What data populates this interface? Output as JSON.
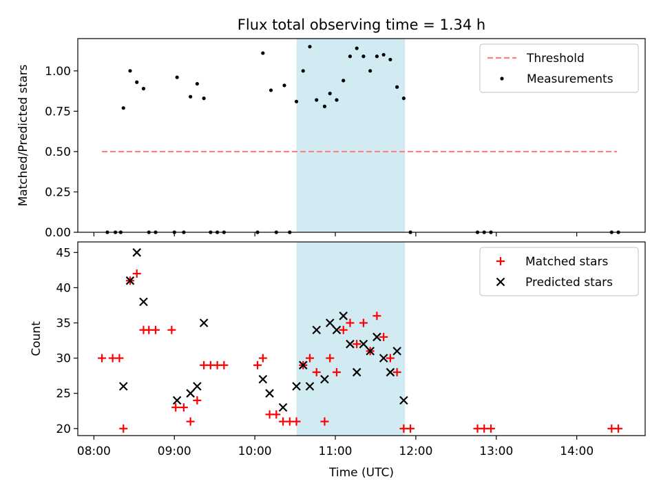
{
  "title": "Flux total observing time = 1.34 h",
  "colors": {
    "threshold": "#ff7f7f",
    "measurement": "#000000",
    "matched": "#ff0000",
    "predicted": "#000000",
    "shade": "#add8e6"
  },
  "chart_data": [
    {
      "type": "scatter",
      "ylabel": "Matched/Predicted stars",
      "xlabel": "",
      "x_range_hours": [
        7.8,
        14.85
      ],
      "ylim": [
        0,
        1.2
      ],
      "yticks": [
        0.0,
        0.25,
        0.5,
        0.75,
        1.0
      ],
      "ytick_labels": [
        "0.00",
        "0.25",
        "0.50",
        "0.75",
        "1.00"
      ],
      "grid": false,
      "legend_position": "top-right",
      "shaded_span": {
        "start": "10:31",
        "end": "11:52"
      },
      "threshold": {
        "name": "Threshold",
        "value": 0.5,
        "x_start": "08:06",
        "x_end": "14:30"
      },
      "series": [
        {
          "name": "Measurements",
          "points": [
            [
              "08:10",
              0.0
            ],
            [
              "08:16",
              0.0
            ],
            [
              "08:20",
              0.0
            ],
            [
              "08:22",
              0.77
            ],
            [
              "08:27",
              1.0
            ],
            [
              "08:32",
              0.93
            ],
            [
              "08:37",
              0.89
            ],
            [
              "08:41",
              0.0
            ],
            [
              "08:46",
              0.0
            ],
            [
              "09:00",
              0.0
            ],
            [
              "09:02",
              0.96
            ],
            [
              "09:07",
              0.0
            ],
            [
              "09:12",
              0.84
            ],
            [
              "09:17",
              0.92
            ],
            [
              "09:22",
              0.83
            ],
            [
              "09:27",
              0.0
            ],
            [
              "09:32",
              0.0
            ],
            [
              "09:37",
              0.0
            ],
            [
              "10:02",
              0.0
            ],
            [
              "10:06",
              1.11
            ],
            [
              "10:12",
              0.88
            ],
            [
              "10:16",
              0.0
            ],
            [
              "10:22",
              0.91
            ],
            [
              "10:26",
              0.0
            ],
            [
              "10:31",
              0.81
            ],
            [
              "10:36",
              1.0
            ],
            [
              "10:41",
              1.15
            ],
            [
              "10:46",
              0.82
            ],
            [
              "10:52",
              0.78
            ],
            [
              "10:56",
              0.86
            ],
            [
              "11:01",
              0.82
            ],
            [
              "11:06",
              0.94
            ],
            [
              "11:11",
              1.09
            ],
            [
              "11:16",
              1.14
            ],
            [
              "11:21",
              1.09
            ],
            [
              "11:26",
              1.0
            ],
            [
              "11:31",
              1.09
            ],
            [
              "11:36",
              1.1
            ],
            [
              "11:41",
              1.07
            ],
            [
              "11:46",
              0.9
            ],
            [
              "11:51",
              0.83
            ],
            [
              "11:56",
              0.0
            ],
            [
              "12:46",
              0.0
            ],
            [
              "12:51",
              0.0
            ],
            [
              "12:56",
              0.0
            ],
            [
              "14:26",
              0.0
            ],
            [
              "14:31",
              0.0
            ]
          ]
        }
      ]
    },
    {
      "type": "scatter",
      "ylabel": "Count",
      "xlabel": "Time (UTC)",
      "x_range_hours": [
        7.8,
        14.85
      ],
      "xticks": [
        "08:00",
        "09:00",
        "10:00",
        "11:00",
        "12:00",
        "13:00",
        "14:00"
      ],
      "ylim": [
        19,
        46.5
      ],
      "yticks": [
        20,
        25,
        30,
        35,
        40,
        45
      ],
      "grid": false,
      "legend_position": "top-right",
      "shaded_span": {
        "start": "10:31",
        "end": "11:52"
      },
      "series": [
        {
          "name": "Matched stars",
          "marker": "plus",
          "points": [
            [
              "08:06",
              30
            ],
            [
              "08:14",
              30
            ],
            [
              "08:19",
              30
            ],
            [
              "08:22",
              20
            ],
            [
              "08:27",
              41
            ],
            [
              "08:32",
              42
            ],
            [
              "08:37",
              34
            ],
            [
              "08:41",
              34
            ],
            [
              "08:46",
              34
            ],
            [
              "08:58",
              34
            ],
            [
              "09:01",
              23
            ],
            [
              "09:07",
              23
            ],
            [
              "09:12",
              21
            ],
            [
              "09:17",
              24
            ],
            [
              "09:22",
              29
            ],
            [
              "09:27",
              29
            ],
            [
              "09:32",
              29
            ],
            [
              "09:37",
              29
            ],
            [
              "10:02",
              29
            ],
            [
              "10:06",
              30
            ],
            [
              "10:11",
              22
            ],
            [
              "10:16",
              22
            ],
            [
              "10:21",
              21
            ],
            [
              "10:26",
              21
            ],
            [
              "10:31",
              21
            ],
            [
              "10:36",
              29
            ],
            [
              "10:41",
              30
            ],
            [
              "10:46",
              28
            ],
            [
              "10:52",
              21
            ],
            [
              "10:56",
              30
            ],
            [
              "11:01",
              28
            ],
            [
              "11:06",
              34
            ],
            [
              "11:11",
              35
            ],
            [
              "11:16",
              32
            ],
            [
              "11:21",
              35
            ],
            [
              "11:26",
              31
            ],
            [
              "11:31",
              36
            ],
            [
              "11:36",
              33
            ],
            [
              "11:41",
              30
            ],
            [
              "11:46",
              28
            ],
            [
              "11:51",
              20
            ],
            [
              "11:56",
              20
            ],
            [
              "12:46",
              20
            ],
            [
              "12:51",
              20
            ],
            [
              "12:56",
              20
            ],
            [
              "14:26",
              20
            ],
            [
              "14:31",
              20
            ]
          ]
        },
        {
          "name": "Predicted stars",
          "marker": "x",
          "points": [
            [
              "08:22",
              26
            ],
            [
              "08:27",
              41
            ],
            [
              "08:32",
              45
            ],
            [
              "08:37",
              38
            ],
            [
              "09:02",
              24
            ],
            [
              "09:12",
              25
            ],
            [
              "09:17",
              26
            ],
            [
              "09:22",
              35
            ],
            [
              "10:06",
              27
            ],
            [
              "10:11",
              25
            ],
            [
              "10:21",
              23
            ],
            [
              "10:31",
              26
            ],
            [
              "10:36",
              29
            ],
            [
              "10:41",
              26
            ],
            [
              "10:46",
              34
            ],
            [
              "10:52",
              27
            ],
            [
              "10:56",
              35
            ],
            [
              "11:01",
              34
            ],
            [
              "11:06",
              36
            ],
            [
              "11:11",
              32
            ],
            [
              "11:16",
              28
            ],
            [
              "11:21",
              32
            ],
            [
              "11:26",
              31
            ],
            [
              "11:31",
              33
            ],
            [
              "11:36",
              30
            ],
            [
              "11:41",
              28
            ],
            [
              "11:46",
              31
            ],
            [
              "11:51",
              24
            ]
          ]
        }
      ]
    }
  ]
}
